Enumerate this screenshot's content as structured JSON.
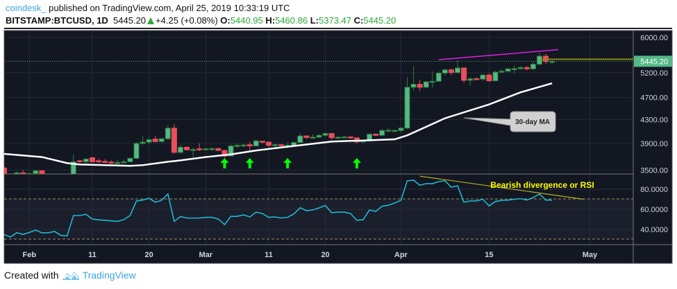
{
  "header": {
    "user": "coindesk_",
    "published": "published on TradingView.com, April 25, 2019 10:33:19 UTC",
    "symbol": "BITSTAMP:BTCUSD, 1D",
    "last": "5445.20",
    "change": "+4.25 (+0.08%)",
    "o_label": "O:",
    "o": "5440.95",
    "h_label": "H:",
    "h": "5460.86",
    "l_label": "L:",
    "l": "5373.47",
    "c_label": "C:",
    "c": "5445.20"
  },
  "footer": {
    "created_with": "Created with",
    "brand": "TradingView"
  },
  "colors": {
    "background": "#131722",
    "up": "#53b987",
    "down": "#eb4d5c",
    "ma": "#ffffff",
    "rsi": "#1fb8d3",
    "arrows": "#00ff00",
    "resistance": "#e020e0",
    "rsi_trend": "#b8b020",
    "annotation_text": "#ffff00"
  },
  "chart_data": {
    "type": "candlestick",
    "price_axis": {
      "scale": "log",
      "ticks": [
        "6000.00",
        "5200.00",
        "4700.00",
        "4300.00",
        "3900.00",
        "3500.00"
      ],
      "tick_values": [
        6000,
        5200,
        4700,
        4300,
        3900,
        3500
      ],
      "last_price_label": "5445.20"
    },
    "time_axis": {
      "ticks": [
        {
          "label": "Feb",
          "date": "2019-02-01"
        },
        {
          "label": "11",
          "date": "2019-02-11"
        },
        {
          "label": "20",
          "date": "2019-02-20"
        },
        {
          "label": "Mar",
          "date": "2019-03-01"
        },
        {
          "label": "11",
          "date": "2019-03-11"
        },
        {
          "label": "20",
          "date": "2019-03-20"
        },
        {
          "label": "Apr",
          "date": "2019-04-01"
        },
        {
          "label": "15",
          "date": "2019-04-15"
        },
        {
          "label": "May",
          "date": "2019-05-01"
        }
      ]
    },
    "grid": true,
    "candles_columns": [
      "date",
      "open",
      "high",
      "low",
      "close"
    ],
    "candles": [
      [
        "2019-01-28",
        3530,
        3550,
        3400,
        3440
      ],
      [
        "2019-01-29",
        3440,
        3450,
        3390,
        3410
      ],
      [
        "2019-01-30",
        3410,
        3480,
        3400,
        3460
      ],
      [
        "2019-01-31",
        3460,
        3500,
        3420,
        3430
      ],
      [
        "2019-02-01",
        3430,
        3470,
        3410,
        3450
      ],
      [
        "2019-02-02",
        3450,
        3500,
        3430,
        3490
      ],
      [
        "2019-02-03",
        3490,
        3495,
        3400,
        3420
      ],
      [
        "2019-02-04",
        3420,
        3440,
        3390,
        3400
      ],
      [
        "2019-02-05",
        3400,
        3440,
        3390,
        3420
      ],
      [
        "2019-02-06",
        3420,
        3440,
        3350,
        3370
      ],
      [
        "2019-02-07",
        3370,
        3390,
        3360,
        3365
      ],
      [
        "2019-02-08",
        3370,
        3730,
        3360,
        3620
      ],
      [
        "2019-02-09",
        3635,
        3650,
        3600,
        3620
      ],
      [
        "2019-02-10",
        3620,
        3680,
        3590,
        3660
      ],
      [
        "2019-02-11",
        3680,
        3685,
        3610,
        3620
      ],
      [
        "2019-02-12",
        3635,
        3665,
        3600,
        3625
      ],
      [
        "2019-02-13",
        3625,
        3660,
        3600,
        3615
      ],
      [
        "2019-02-14",
        3615,
        3640,
        3590,
        3600
      ],
      [
        "2019-02-15",
        3600,
        3650,
        3590,
        3610
      ],
      [
        "2019-02-16",
        3610,
        3650,
        3600,
        3620
      ],
      [
        "2019-02-17",
        3620,
        3690,
        3610,
        3670
      ],
      [
        "2019-02-18",
        3670,
        3920,
        3660,
        3900
      ],
      [
        "2019-02-19",
        3900,
        4020,
        3880,
        3920
      ],
      [
        "2019-02-20",
        3920,
        3990,
        3890,
        3960
      ],
      [
        "2019-02-21",
        3970,
        4020,
        3920,
        3930
      ],
      [
        "2019-02-22",
        3930,
        3985,
        3910,
        3975
      ],
      [
        "2019-02-23",
        3975,
        4200,
        3950,
        4150
      ],
      [
        "2019-02-24",
        4150,
        4220,
        3740,
        3760
      ],
      [
        "2019-02-25",
        3760,
        3880,
        3740,
        3840
      ],
      [
        "2019-02-26",
        3840,
        3850,
        3790,
        3800
      ],
      [
        "2019-02-27",
        3800,
        3830,
        3680,
        3805
      ],
      [
        "2019-02-28",
        3815,
        3900,
        3780,
        3800
      ],
      [
        "2019-03-01",
        3800,
        3840,
        3790,
        3815
      ],
      [
        "2019-03-02",
        3815,
        3830,
        3780,
        3820
      ],
      [
        "2019-03-03",
        3820,
        3830,
        3780,
        3790
      ],
      [
        "2019-03-04",
        3790,
        3800,
        3680,
        3705
      ],
      [
        "2019-03-05",
        3705,
        3880,
        3700,
        3860
      ],
      [
        "2019-03-06",
        3860,
        3900,
        3830,
        3870
      ],
      [
        "2019-03-07",
        3870,
        3890,
        3840,
        3875
      ],
      [
        "2019-03-08",
        3880,
        3920,
        3780,
        3860
      ],
      [
        "2019-03-09",
        3860,
        3960,
        3850,
        3940
      ],
      [
        "2019-03-10",
        3935,
        3940,
        3900,
        3920
      ],
      [
        "2019-03-11",
        3920,
        3930,
        3840,
        3870
      ],
      [
        "2019-03-12",
        3870,
        3900,
        3820,
        3880
      ],
      [
        "2019-03-13",
        3880,
        3890,
        3850,
        3865
      ],
      [
        "2019-03-14",
        3865,
        3920,
        3820,
        3870
      ],
      [
        "2019-03-15",
        3870,
        3930,
        3860,
        3915
      ],
      [
        "2019-03-16",
        3915,
        4070,
        3910,
        4020
      ],
      [
        "2019-03-17",
        4020,
        4030,
        3970,
        3995
      ],
      [
        "2019-03-18",
        3995,
        4050,
        3980,
        4000
      ],
      [
        "2019-03-19",
        4000,
        4050,
        3990,
        4030
      ],
      [
        "2019-03-20",
        4030,
        4080,
        4010,
        4060
      ],
      [
        "2019-03-21",
        4060,
        4070,
        3960,
        3990
      ],
      [
        "2019-03-22",
        3990,
        4010,
        3980,
        4000
      ],
      [
        "2019-03-23",
        4000,
        4020,
        3990,
        4005
      ],
      [
        "2019-03-24",
        4005,
        4010,
        3970,
        3990
      ],
      [
        "2019-03-25",
        3990,
        3995,
        3900,
        3925
      ],
      [
        "2019-03-26",
        3925,
        3960,
        3910,
        3940
      ],
      [
        "2019-03-27",
        3940,
        4060,
        3930,
        4050
      ],
      [
        "2019-03-28",
        4050,
        4060,
        4020,
        4030
      ],
      [
        "2019-03-29",
        4030,
        4140,
        4020,
        4110
      ],
      [
        "2019-03-30",
        4110,
        4150,
        4080,
        4115
      ],
      [
        "2019-03-31",
        4110,
        4120,
        4090,
        4112
      ],
      [
        "2019-04-01",
        4110,
        4170,
        4080,
        4150
      ],
      [
        "2019-04-02",
        4150,
        5100,
        4140,
        4900
      ],
      [
        "2019-04-03",
        4900,
        5340,
        4830,
        4960
      ],
      [
        "2019-04-04",
        4960,
        5050,
        4820,
        4900
      ],
      [
        "2019-04-05",
        4900,
        5020,
        4880,
        5010
      ],
      [
        "2019-04-06",
        5010,
        5220,
        4890,
        5020
      ],
      [
        "2019-04-07",
        5020,
        5230,
        5010,
        5190
      ],
      [
        "2019-04-08",
        5190,
        5280,
        5140,
        5260
      ],
      [
        "2019-04-09",
        5260,
        5280,
        5150,
        5200
      ],
      [
        "2019-04-10",
        5200,
        5470,
        5180,
        5300
      ],
      [
        "2019-04-11",
        5300,
        5310,
        4990,
        5040
      ],
      [
        "2019-04-12",
        5040,
        5110,
        4930,
        5070
      ],
      [
        "2019-04-13",
        5075,
        5100,
        5050,
        5065
      ],
      [
        "2019-04-14",
        5065,
        5180,
        5030,
        5150
      ],
      [
        "2019-04-15",
        5150,
        5190,
        5010,
        5030
      ],
      [
        "2019-04-16",
        5030,
        5240,
        5020,
        5210
      ],
      [
        "2019-04-17",
        5210,
        5270,
        5190,
        5230
      ],
      [
        "2019-04-18",
        5230,
        5310,
        5220,
        5280
      ],
      [
        "2019-04-19",
        5280,
        5350,
        5180,
        5285
      ],
      [
        "2019-04-20",
        5285,
        5340,
        5260,
        5310
      ],
      [
        "2019-04-21",
        5310,
        5340,
        5240,
        5280
      ],
      [
        "2019-04-22",
        5280,
        5440,
        5250,
        5380
      ],
      [
        "2019-04-23",
        5380,
        5630,
        5370,
        5560
      ],
      [
        "2019-04-24",
        5560,
        5610,
        5380,
        5440
      ],
      [
        "2019-04-25",
        5440.95,
        5460.86,
        5373.47,
        5445.2
      ]
    ],
    "moving_average": {
      "label": "30-day MA",
      "points": [
        [
          "2019-01-28",
          3738
        ],
        [
          "2019-02-03",
          3690
        ],
        [
          "2019-02-07",
          3600
        ],
        [
          "2019-02-09",
          3580
        ],
        [
          "2019-02-17",
          3560
        ],
        [
          "2019-02-19",
          3570
        ],
        [
          "2019-02-23",
          3620
        ],
        [
          "2019-02-25",
          3640
        ],
        [
          "2019-03-01",
          3690
        ],
        [
          "2019-03-05",
          3730
        ],
        [
          "2019-03-09",
          3790
        ],
        [
          "2019-03-15",
          3860
        ],
        [
          "2019-03-21",
          3930
        ],
        [
          "2019-03-27",
          3950
        ],
        [
          "2019-03-31",
          3965
        ],
        [
          "2019-04-02",
          4030
        ],
        [
          "2019-04-08",
          4320
        ],
        [
          "2019-04-15",
          4570
        ],
        [
          "2019-04-20",
          4800
        ],
        [
          "2019-04-25",
          4980
        ]
      ]
    },
    "resistance_line": [
      [
        "2019-04-07",
        5480
      ],
      [
        "2019-04-26",
        5710
      ]
    ],
    "support_arrows": [
      "2019-03-04",
      "2019-03-08",
      "2019-03-14",
      "2019-03-25"
    ],
    "rsi": {
      "ticks": [
        "80.0000",
        "60.0000",
        "40.0000"
      ],
      "tick_values": [
        80,
        60,
        40
      ],
      "bands": [
        70,
        30
      ],
      "values": [
        34.8,
        32.4,
        36.7,
        35,
        37,
        39.3,
        36.6,
        36.6,
        38,
        34,
        33.6,
        53.8,
        53.8,
        55,
        50.3,
        49.5,
        49,
        48.5,
        48,
        49.7,
        53.8,
        68.3,
        69.2,
        71,
        67,
        69,
        75.2,
        48,
        52.8,
        51.3,
        51.3,
        51.3,
        52,
        52,
        50.3,
        44.8,
        53,
        53,
        54.5,
        52.4,
        57.2,
        55.8,
        52,
        52.4,
        51.3,
        52,
        55.4,
        61.6,
        58.6,
        59.3,
        61.4,
        63.9,
        56.6,
        57.2,
        57.2,
        55.8,
        49,
        49.7,
        59.3,
        57.9,
        63,
        64,
        66.2,
        69,
        88.3,
        89,
        84,
        85.5,
        85.5,
        87.6,
        88.3,
        82,
        83.4,
        67,
        68.3,
        68.3,
        70,
        63.4,
        67.8,
        68.9,
        69.2,
        70,
        70.6,
        69.2,
        71.7,
        75.2,
        69.2,
        69.2
      ],
      "trendline": [
        [
          "2019-04-04",
          93
        ],
        [
          "2019-04-30",
          70
        ]
      ],
      "annotation": "Bearish divergence or RSI"
    }
  }
}
